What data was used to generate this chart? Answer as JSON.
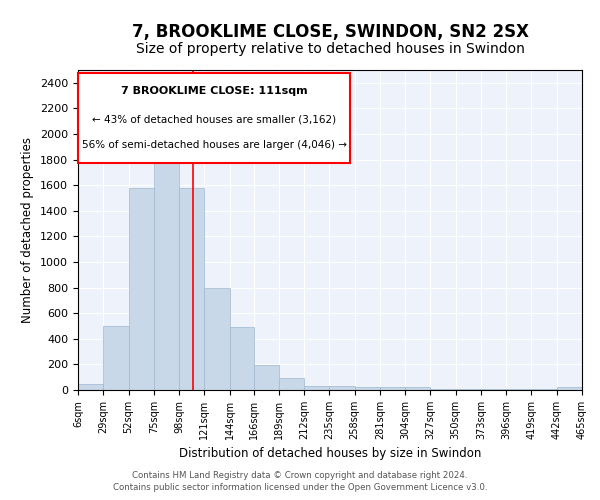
{
  "title": "7, BROOKLIME CLOSE, SWINDON, SN2 2SX",
  "subtitle": "Size of property relative to detached houses in Swindon",
  "xlabel": "Distribution of detached houses by size in Swindon",
  "ylabel": "Number of detached properties",
  "footnote1": "Contains HM Land Registry data © Crown copyright and database right 2024.",
  "footnote2": "Contains public sector information licensed under the Open Government Licence v3.0.",
  "annotation_title": "7 BROOKLIME CLOSE: 111sqm",
  "annotation_line1": "← 43% of detached houses are smaller (3,162)",
  "annotation_line2": "56% of semi-detached houses are larger (4,046) →",
  "bar_color": "#c8d8e8",
  "bar_edge_color": "#a0b8d0",
  "vline_color": "red",
  "vline_x": 111,
  "bin_edges": [
    6,
    29,
    52,
    75,
    98,
    121,
    144,
    166,
    189,
    212,
    235,
    258,
    281,
    304,
    327,
    350,
    373,
    396,
    419,
    442,
    465
  ],
  "bar_heights": [
    50,
    500,
    1580,
    1950,
    1580,
    800,
    490,
    195,
    90,
    35,
    35,
    25,
    20,
    20,
    5,
    5,
    5,
    5,
    5,
    20
  ],
  "ylim": [
    0,
    2500
  ],
  "yticks": [
    0,
    200,
    400,
    600,
    800,
    1000,
    1200,
    1400,
    1600,
    1800,
    2000,
    2200,
    2400
  ],
  "background_color": "#eef2fb",
  "title_fontsize": 12,
  "subtitle_fontsize": 10
}
